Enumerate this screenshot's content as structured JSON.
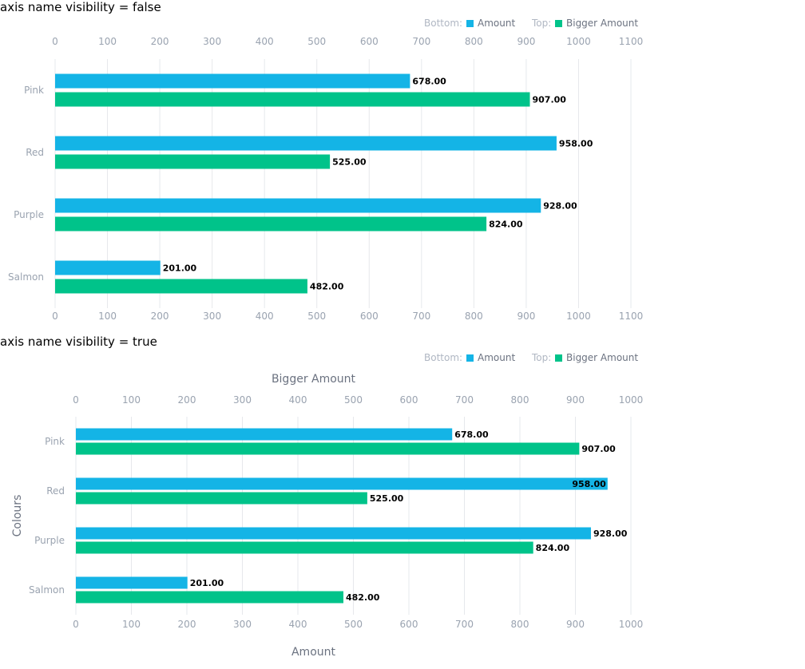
{
  "colors": {
    "amount": "#14b4e6",
    "bigger": "#00c38a"
  },
  "chart_data": [
    {
      "type": "bar",
      "orientation": "horizontal",
      "title": "axis name visibility = false",
      "categories": [
        "Pink",
        "Red",
        "Purple",
        "Salmon"
      ],
      "series": [
        {
          "name": "Amount",
          "axis": "bottom",
          "values": [
            678,
            958,
            928,
            201
          ],
          "labels": [
            "678.00",
            "958.00",
            "928.00",
            "201.00"
          ]
        },
        {
          "name": "Bigger Amount",
          "axis": "top",
          "values": [
            907,
            525,
            824,
            482
          ],
          "labels": [
            "907.00",
            "525.00",
            "824.00",
            "482.00"
          ]
        }
      ],
      "legend": {
        "bottom_prefix": "Bottom:",
        "top_prefix": "Top:",
        "placement": "top-right"
      },
      "xlim": [
        0,
        1100
      ],
      "ticks": [
        "0",
        "100",
        "200",
        "300",
        "400",
        "500",
        "600",
        "700",
        "800",
        "900",
        "1000",
        "1100"
      ],
      "xlabel_top": "",
      "xlabel_bottom": "",
      "ylabel": "",
      "grid": true
    },
    {
      "type": "bar",
      "orientation": "horizontal",
      "title": "axis name visibility = true",
      "categories": [
        "Pink",
        "Red",
        "Purple",
        "Salmon"
      ],
      "series": [
        {
          "name": "Amount",
          "axis": "bottom",
          "values": [
            678,
            958,
            928,
            201
          ],
          "labels": [
            "678.00",
            "958.00",
            "928.00",
            "201.00"
          ]
        },
        {
          "name": "Bigger Amount",
          "axis": "top",
          "values": [
            907,
            525,
            824,
            482
          ],
          "labels": [
            "907.00",
            "525.00",
            "824.00",
            "482.00"
          ]
        }
      ],
      "legend": {
        "bottom_prefix": "Bottom:",
        "top_prefix": "Top:",
        "placement": "top-right"
      },
      "xlim": [
        0,
        1000
      ],
      "ticks": [
        "0",
        "100",
        "200",
        "300",
        "400",
        "500",
        "600",
        "700",
        "800",
        "900",
        "1000"
      ],
      "xlabel_top": "Bigger Amount",
      "xlabel_bottom": "Amount",
      "ylabel": "Colours",
      "grid": true
    }
  ]
}
